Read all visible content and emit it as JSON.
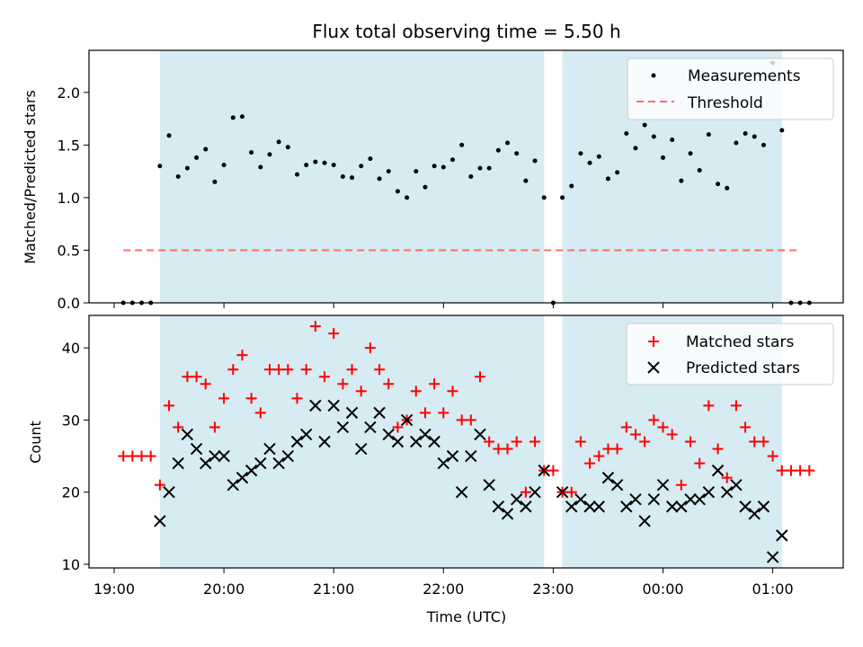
{
  "chart_data": [
    {
      "type": "scatter",
      "title": "Flux total observing time = 5.50 h",
      "ylabel": "Matched/Predicted stars",
      "xlabel": "",
      "ylim": [
        0,
        2.4
      ],
      "yticks": [
        "0.0",
        "0.5",
        "1.0",
        "1.5",
        "2.0"
      ],
      "grid": false,
      "legend": "top-right",
      "shaded_intervals": [
        [
          "19:25",
          "22:55"
        ],
        [
          "23:05",
          "01:05"
        ]
      ],
      "threshold": {
        "name": "Threshold",
        "value": 0.5,
        "x_range": [
          "19:05",
          "01:15"
        ],
        "color": "#ff6b6b"
      },
      "series": [
        {
          "name": "Measurements",
          "color": "#000000",
          "marker": "dot",
          "points": [
            [
              "19:05",
              0
            ],
            [
              "19:10",
              0
            ],
            [
              "19:15",
              0
            ],
            [
              "19:20",
              0
            ],
            [
              "19:25",
              1.3
            ],
            [
              "19:30",
              1.59
            ],
            [
              "19:35",
              1.2
            ],
            [
              "19:40",
              1.28
            ],
            [
              "19:45",
              1.38
            ],
            [
              "19:50",
              1.46
            ],
            [
              "19:55",
              1.15
            ],
            [
              "20:00",
              1.31
            ],
            [
              "20:05",
              1.76
            ],
            [
              "20:10",
              1.77
            ],
            [
              "20:15",
              1.43
            ],
            [
              "20:20",
              1.29
            ],
            [
              "20:25",
              1.41
            ],
            [
              "20:30",
              1.53
            ],
            [
              "20:35",
              1.48
            ],
            [
              "20:40",
              1.22
            ],
            [
              "20:45",
              1.31
            ],
            [
              "20:50",
              1.34
            ],
            [
              "20:55",
              1.33
            ],
            [
              "21:00",
              1.31
            ],
            [
              "21:05",
              1.2
            ],
            [
              "21:10",
              1.19
            ],
            [
              "21:15",
              1.3
            ],
            [
              "21:20",
              1.37
            ],
            [
              "21:25",
              1.18
            ],
            [
              "21:30",
              1.25
            ],
            [
              "21:35",
              1.06
            ],
            [
              "21:40",
              1.0
            ],
            [
              "21:45",
              1.25
            ],
            [
              "21:50",
              1.1
            ],
            [
              "21:55",
              1.3
            ],
            [
              "22:00",
              1.29
            ],
            [
              "22:05",
              1.36
            ],
            [
              "22:10",
              1.5
            ],
            [
              "22:15",
              1.2
            ],
            [
              "22:20",
              1.28
            ],
            [
              "22:25",
              1.28
            ],
            [
              "22:30",
              1.45
            ],
            [
              "22:35",
              1.52
            ],
            [
              "22:40",
              1.42
            ],
            [
              "22:45",
              1.16
            ],
            [
              "22:50",
              1.35
            ],
            [
              "22:55",
              1.0
            ],
            [
              "23:00",
              0
            ],
            [
              "23:05",
              1.0
            ],
            [
              "23:10",
              1.11
            ],
            [
              "23:15",
              1.42
            ],
            [
              "23:20",
              1.33
            ],
            [
              "23:25",
              1.39
            ],
            [
              "23:30",
              1.18
            ],
            [
              "23:35",
              1.24
            ],
            [
              "23:40",
              1.61
            ],
            [
              "23:45",
              1.47
            ],
            [
              "23:50",
              1.69
            ],
            [
              "23:55",
              1.58
            ],
            [
              "00:00",
              1.38
            ],
            [
              "00:05",
              1.55
            ],
            [
              "00:10",
              1.16
            ],
            [
              "00:15",
              1.42
            ],
            [
              "00:20",
              1.26
            ],
            [
              "00:25",
              1.6
            ],
            [
              "00:30",
              1.13
            ],
            [
              "00:35",
              1.09
            ],
            [
              "00:40",
              1.52
            ],
            [
              "00:45",
              1.61
            ],
            [
              "00:50",
              1.58
            ],
            [
              "00:55",
              1.5
            ],
            [
              "01:00",
              2.28
            ],
            [
              "01:05",
              1.64
            ],
            [
              "01:10",
              0
            ],
            [
              "01:15",
              0
            ],
            [
              "01:20",
              0
            ]
          ]
        }
      ]
    },
    {
      "type": "scatter",
      "title": "",
      "ylabel": "Count",
      "xlabel": "Time (UTC)",
      "ylim": [
        9.5,
        44.5
      ],
      "yticks": [
        "10",
        "20",
        "30",
        "40"
      ],
      "xticks": [
        "19:00",
        "20:00",
        "21:00",
        "22:00",
        "23:00",
        "00:00",
        "01:00"
      ],
      "grid": false,
      "legend": "top-right",
      "series": [
        {
          "name": "Matched stars",
          "color": "#ff0000",
          "marker": "plus",
          "points": [
            [
              "19:05",
              25
            ],
            [
              "19:10",
              25
            ],
            [
              "19:15",
              25
            ],
            [
              "19:20",
              25
            ],
            [
              "19:25",
              21
            ],
            [
              "19:30",
              32
            ],
            [
              "19:35",
              29
            ],
            [
              "19:40",
              36
            ],
            [
              "19:45",
              36
            ],
            [
              "19:50",
              35
            ],
            [
              "19:55",
              29
            ],
            [
              "20:00",
              33
            ],
            [
              "20:05",
              37
            ],
            [
              "20:10",
              39
            ],
            [
              "20:15",
              33
            ],
            [
              "20:20",
              31
            ],
            [
              "20:25",
              37
            ],
            [
              "20:30",
              37
            ],
            [
              "20:35",
              37
            ],
            [
              "20:40",
              33
            ],
            [
              "20:45",
              37
            ],
            [
              "20:50",
              43
            ],
            [
              "20:55",
              36
            ],
            [
              "21:00",
              42
            ],
            [
              "21:05",
              35
            ],
            [
              "21:10",
              37
            ],
            [
              "21:15",
              34
            ],
            [
              "21:20",
              40
            ],
            [
              "21:25",
              37
            ],
            [
              "21:30",
              35
            ],
            [
              "21:35",
              29
            ],
            [
              "21:40",
              30
            ],
            [
              "21:45",
              34
            ],
            [
              "21:50",
              31
            ],
            [
              "21:55",
              35
            ],
            [
              "22:00",
              31
            ],
            [
              "22:05",
              34
            ],
            [
              "22:10",
              30
            ],
            [
              "22:15",
              30
            ],
            [
              "22:20",
              36
            ],
            [
              "22:25",
              27
            ],
            [
              "22:30",
              26
            ],
            [
              "22:35",
              26
            ],
            [
              "22:40",
              27
            ],
            [
              "22:45",
              20
            ],
            [
              "22:50",
              27
            ],
            [
              "22:55",
              23
            ],
            [
              "23:00",
              23
            ],
            [
              "23:05",
              20
            ],
            [
              "23:10",
              20
            ],
            [
              "23:15",
              27
            ],
            [
              "23:20",
              24
            ],
            [
              "23:25",
              25
            ],
            [
              "23:30",
              26
            ],
            [
              "23:35",
              26
            ],
            [
              "23:40",
              29
            ],
            [
              "23:45",
              28
            ],
            [
              "23:50",
              27
            ],
            [
              "23:55",
              30
            ],
            [
              "00:00",
              29
            ],
            [
              "00:05",
              28
            ],
            [
              "00:10",
              21
            ],
            [
              "00:15",
              27
            ],
            [
              "00:20",
              24
            ],
            [
              "00:25",
              32
            ],
            [
              "00:30",
              26
            ],
            [
              "00:35",
              22
            ],
            [
              "00:40",
              32
            ],
            [
              "00:45",
              29
            ],
            [
              "00:50",
              27
            ],
            [
              "00:55",
              27
            ],
            [
              "01:00",
              25
            ],
            [
              "01:05",
              23
            ],
            [
              "01:10",
              23
            ],
            [
              "01:15",
              23
            ],
            [
              "01:20",
              23
            ]
          ]
        },
        {
          "name": "Predicted stars",
          "color": "#000000",
          "marker": "x",
          "points": [
            [
              "19:25",
              16
            ],
            [
              "19:30",
              20
            ],
            [
              "19:35",
              24
            ],
            [
              "19:40",
              28
            ],
            [
              "19:45",
              26
            ],
            [
              "19:50",
              24
            ],
            [
              "19:55",
              25
            ],
            [
              "20:00",
              25
            ],
            [
              "20:05",
              21
            ],
            [
              "20:10",
              22
            ],
            [
              "20:15",
              23
            ],
            [
              "20:20",
              24
            ],
            [
              "20:25",
              26
            ],
            [
              "20:30",
              24
            ],
            [
              "20:35",
              25
            ],
            [
              "20:40",
              27
            ],
            [
              "20:45",
              28
            ],
            [
              "20:50",
              32
            ],
            [
              "20:55",
              27
            ],
            [
              "21:00",
              32
            ],
            [
              "21:05",
              29
            ],
            [
              "21:10",
              31
            ],
            [
              "21:15",
              26
            ],
            [
              "21:20",
              29
            ],
            [
              "21:25",
              31
            ],
            [
              "21:30",
              28
            ],
            [
              "21:35",
              27
            ],
            [
              "21:40",
              30
            ],
            [
              "21:45",
              27
            ],
            [
              "21:50",
              28
            ],
            [
              "21:55",
              27
            ],
            [
              "22:00",
              24
            ],
            [
              "22:05",
              25
            ],
            [
              "22:10",
              20
            ],
            [
              "22:15",
              25
            ],
            [
              "22:20",
              28
            ],
            [
              "22:25",
              21
            ],
            [
              "22:30",
              18
            ],
            [
              "22:35",
              17
            ],
            [
              "22:40",
              19
            ],
            [
              "22:45",
              18
            ],
            [
              "22:50",
              20
            ],
            [
              "22:55",
              23
            ],
            [
              "23:05",
              20
            ],
            [
              "23:10",
              18
            ],
            [
              "23:15",
              19
            ],
            [
              "23:20",
              18
            ],
            [
              "23:25",
              18
            ],
            [
              "23:30",
              22
            ],
            [
              "23:35",
              21
            ],
            [
              "23:40",
              18
            ],
            [
              "23:45",
              19
            ],
            [
              "23:50",
              16
            ],
            [
              "23:55",
              19
            ],
            [
              "00:00",
              21
            ],
            [
              "00:05",
              18
            ],
            [
              "00:10",
              18
            ],
            [
              "00:15",
              19
            ],
            [
              "00:20",
              19
            ],
            [
              "00:25",
              20
            ],
            [
              "00:30",
              23
            ],
            [
              "00:35",
              20
            ],
            [
              "00:40",
              21
            ],
            [
              "00:45",
              18
            ],
            [
              "00:50",
              17
            ],
            [
              "00:55",
              18
            ],
            [
              "01:00",
              11
            ],
            [
              "01:05",
              14
            ]
          ]
        }
      ]
    }
  ]
}
